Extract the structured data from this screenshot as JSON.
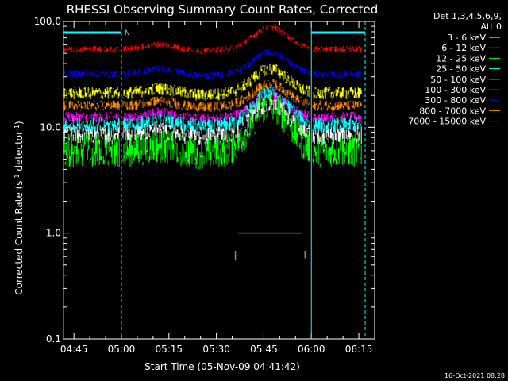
{
  "chart_data": {
    "type": "line",
    "title": "RHESSI Observing Summary Count Rates, Corrected",
    "xlabel": "Start Time (05-Nov-09 04:41:42)",
    "ylabel_main": "Corrected Count Rate (s",
    "ylabel_sup1": "-1",
    "ylabel_mid": " detector",
    "ylabel_sup2": "-1",
    "ylabel_end": ")",
    "y_scale": "log",
    "ylim": [
      0.1,
      100
    ],
    "y_ticks": [
      {
        "value": 0.1,
        "label": "0.1"
      },
      {
        "value": 1,
        "label": "1.0"
      },
      {
        "value": 10,
        "label": "10.0"
      },
      {
        "value": 100,
        "label": "100.0"
      }
    ],
    "x_start_min": 281.7,
    "x_range_min": [
      281.7,
      380
    ],
    "x_ticks": [
      {
        "min": 285,
        "label": "04:45"
      },
      {
        "min": 300,
        "label": "05:00"
      },
      {
        "min": 315,
        "label": "05:15"
      },
      {
        "min": 330,
        "label": "05:30"
      },
      {
        "min": 345,
        "label": "05:45"
      },
      {
        "min": 360,
        "label": "06:00"
      },
      {
        "min": 375,
        "label": "06:15"
      }
    ],
    "legend": {
      "header_line1": "Det 1,3,4,5,6,9,",
      "header_line2": "Att 0",
      "placement": "top-right"
    },
    "series": [
      {
        "name": "3 - 6 keV",
        "color": "#ffffff",
        "base": 8.5,
        "peak": 2.0,
        "noise": 0.09
      },
      {
        "name": "6 - 12 keV",
        "color": "#ff00ff",
        "base": 12.5,
        "peak": 1.6,
        "noise": 0.05
      },
      {
        "name": "12 - 25 keV",
        "color": "#00ff00",
        "base": 6.0,
        "peak": 2.7,
        "noise": 0.16
      },
      {
        "name": "25 - 50 keV",
        "color": "#00ffff",
        "base": 10.5,
        "peak": 2.05,
        "noise": 0.07
      },
      {
        "name": "50 - 100 keV",
        "color": "#ffff00",
        "base": 21.0,
        "peak": 1.7,
        "noise": 0.06
      },
      {
        "name": "100 - 300 keV",
        "color": "#ff0000",
        "base": 55.0,
        "peak": 1.6,
        "noise": 0.03
      },
      {
        "name": "300 - 800 keV",
        "color": "#0000ff",
        "base": 32.0,
        "peak": 1.6,
        "noise": 0.035
      },
      {
        "name": "800 - 7000 keV",
        "color": "#ff8800",
        "base": 16.0,
        "peak": 1.6,
        "noise": 0.05
      },
      {
        "name": "7000 - 15000 keV",
        "color": "#999900",
        "base": null,
        "peak": null,
        "noise": null
      }
    ],
    "flags": [
      {
        "label": "N",
        "start_min": 281.7,
        "end_min": 300,
        "level": "top"
      },
      {
        "label": "",
        "start_min": 360,
        "end_min": 377,
        "level": "top"
      }
    ],
    "markers": {
      "solid_cyan_min": [
        281.7,
        360
      ],
      "dashed_cyan_min": [
        300,
        377
      ]
    },
    "high_energy_trace": {
      "value_low": 0.55,
      "value_high": 1.0,
      "start_min": 337,
      "end_min": 359
    }
  },
  "footer": {
    "timestamp": "16-Oct-2021 08:28"
  }
}
